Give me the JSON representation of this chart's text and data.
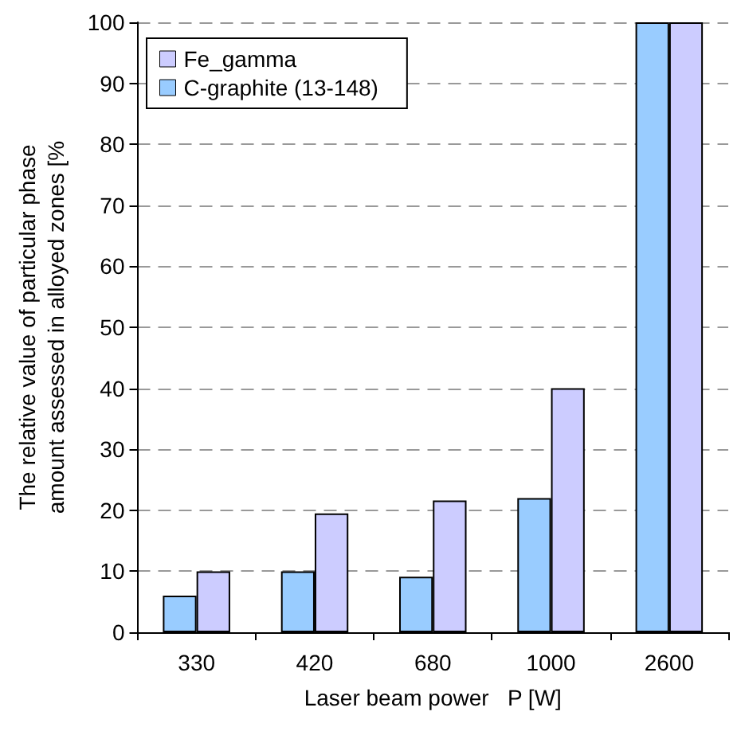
{
  "chart_data": {
    "type": "bar",
    "xlabel": "Laser beam power   P [W]",
    "ylabel": "The relative value of particular phase\namount assessed in alloyed zones [%",
    "categories": [
      "330",
      "420",
      "680",
      "1000",
      "2600"
    ],
    "series": [
      {
        "name": "Fe_gamma",
        "color": "#ccccff",
        "values": [
          10,
          19.5,
          21.6,
          40,
          100
        ]
      },
      {
        "name": "C-graphite (13-148)",
        "color": "#99ccff",
        "values": [
          6,
          10,
          9.1,
          22,
          100
        ]
      }
    ],
    "ylim": [
      0,
      100
    ],
    "yticks": [
      0,
      10,
      20,
      30,
      40,
      50,
      60,
      70,
      80,
      90,
      100
    ],
    "grid": "y",
    "legend": "top left"
  }
}
